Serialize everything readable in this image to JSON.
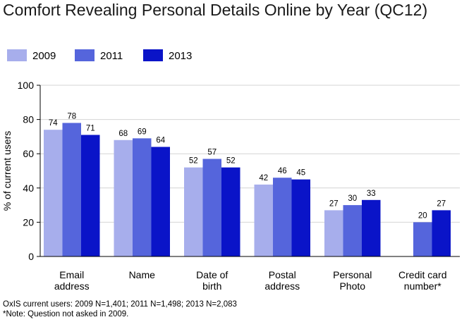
{
  "chart_data": {
    "type": "bar",
    "title": "Comfort Revealing Personal Details Online by Year (QC12)",
    "ylabel": "% of current users",
    "xlabel": "",
    "ylim": [
      0,
      100
    ],
    "yticks": [
      0,
      20,
      40,
      60,
      80,
      100
    ],
    "grid": true,
    "legend_position": "top-left",
    "categories": [
      [
        "Email",
        "address"
      ],
      [
        "Name"
      ],
      [
        "Date of",
        "birth"
      ],
      [
        "Postal",
        "address"
      ],
      [
        "Personal",
        "Photo"
      ],
      [
        "Credit card",
        "number*"
      ]
    ],
    "series": [
      {
        "name": "2009",
        "color": "#a7aeec",
        "values": [
          74,
          68,
          52,
          42,
          27,
          null
        ]
      },
      {
        "name": "2011",
        "color": "#5565dc",
        "values": [
          78,
          69,
          57,
          46,
          30,
          20
        ]
      },
      {
        "name": "2013",
        "color": "#0a14c8",
        "values": [
          71,
          64,
          52,
          45,
          33,
          27
        ]
      }
    ]
  },
  "footnotes": [
    "OxIS current users: 2009 N=1,401; 2011 N=1,498; 2013 N=2,083",
    "*Note: Question not asked in 2009."
  ]
}
